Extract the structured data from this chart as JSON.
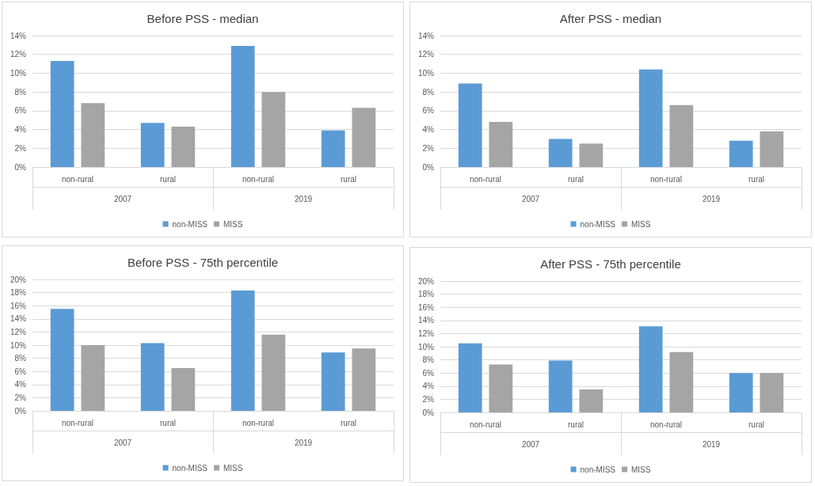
{
  "chart_data": [
    {
      "type": "bar",
      "title": "Before PSS - median",
      "categories": [
        "non-rural",
        "rural",
        "non-rural",
        "rural"
      ],
      "annotations": [
        "2007",
        "2019"
      ],
      "series": [
        {
          "name": "non-MISS",
          "color": "#5b9bd5",
          "values": [
            11.3,
            4.7,
            12.9,
            3.9
          ]
        },
        {
          "name": "MISS",
          "color": "#a5a5a5",
          "values": [
            6.8,
            4.3,
            8.0,
            6.3
          ]
        }
      ],
      "ylim": [
        0,
        14
      ],
      "yticks": [
        {
          "value": 0,
          "label": "0%"
        },
        {
          "value": 2,
          "label": "2%"
        },
        {
          "value": 4,
          "label": "4%"
        },
        {
          "value": 6,
          "label": "6%"
        },
        {
          "value": 8,
          "label": "8%"
        },
        {
          "value": 10,
          "label": "10%"
        },
        {
          "value": 12,
          "label": "12%"
        },
        {
          "value": 14,
          "label": "14%"
        }
      ],
      "grid": "y",
      "legend": "bottom"
    },
    {
      "type": "bar",
      "title": "After PSS - median",
      "categories": [
        "non-rural",
        "rural",
        "non-rural",
        "rural"
      ],
      "annotations": [
        "2007",
        "2019"
      ],
      "series": [
        {
          "name": "non-MISS",
          "color": "#5b9bd5",
          "values": [
            8.9,
            3.0,
            10.4,
            2.8
          ]
        },
        {
          "name": "MISS",
          "color": "#a5a5a5",
          "values": [
            4.8,
            2.5,
            6.6,
            3.8
          ]
        }
      ],
      "ylim": [
        0,
        14
      ],
      "yticks": [
        {
          "value": 0,
          "label": "0%"
        },
        {
          "value": 2,
          "label": "2%"
        },
        {
          "value": 4,
          "label": "4%"
        },
        {
          "value": 6,
          "label": "6%"
        },
        {
          "value": 8,
          "label": "8%"
        },
        {
          "value": 10,
          "label": "10%"
        },
        {
          "value": 12,
          "label": "12%"
        },
        {
          "value": 14,
          "label": "14%"
        }
      ],
      "grid": "y",
      "legend": "bottom"
    },
    {
      "type": "bar",
      "title": "Before PSS - 75th percentile",
      "categories": [
        "non-rural",
        "rural",
        "non-rural",
        "rural"
      ],
      "annotations": [
        "2007",
        "2019"
      ],
      "series": [
        {
          "name": "non-MISS",
          "color": "#5b9bd5",
          "values": [
            15.5,
            10.3,
            18.3,
            8.9
          ]
        },
        {
          "name": "MISS",
          "color": "#a5a5a5",
          "values": [
            10.0,
            6.5,
            11.6,
            9.5
          ]
        }
      ],
      "ylim": [
        0,
        20
      ],
      "yticks": [
        {
          "value": 0,
          "label": "0%"
        },
        {
          "value": 2,
          "label": "2%"
        },
        {
          "value": 4,
          "label": "4%"
        },
        {
          "value": 6,
          "label": "6%"
        },
        {
          "value": 8,
          "label": "8%"
        },
        {
          "value": 10,
          "label": "10%"
        },
        {
          "value": 12,
          "label": "12%"
        },
        {
          "value": 14,
          "label": "14%"
        },
        {
          "value": 16,
          "label": "16%"
        },
        {
          "value": 18,
          "label": "18%"
        },
        {
          "value": 20,
          "label": "20%"
        }
      ],
      "grid": "y",
      "legend": "bottom"
    },
    {
      "type": "bar",
      "title": "After PSS - 75th percentile",
      "categories": [
        "non-rural",
        "rural",
        "non-rural",
        "rural"
      ],
      "annotations": [
        "2007",
        "2019"
      ],
      "series": [
        {
          "name": "non-MISS",
          "color": "#5b9bd5",
          "values": [
            10.5,
            7.9,
            13.1,
            6.0
          ]
        },
        {
          "name": "MISS",
          "color": "#a5a5a5",
          "values": [
            7.3,
            3.5,
            9.2,
            6.0
          ]
        }
      ],
      "ylim": [
        0,
        20
      ],
      "yticks": [
        {
          "value": 0,
          "label": "0%"
        },
        {
          "value": 2,
          "label": "2%"
        },
        {
          "value": 4,
          "label": "4%"
        },
        {
          "value": 6,
          "label": "6%"
        },
        {
          "value": 8,
          "label": "8%"
        },
        {
          "value": 10,
          "label": "10%"
        },
        {
          "value": 12,
          "label": "12%"
        },
        {
          "value": 14,
          "label": "14%"
        },
        {
          "value": 16,
          "label": "16%"
        },
        {
          "value": 18,
          "label": "18%"
        },
        {
          "value": 20,
          "label": "20%"
        }
      ],
      "grid": "y",
      "legend": "bottom"
    }
  ]
}
